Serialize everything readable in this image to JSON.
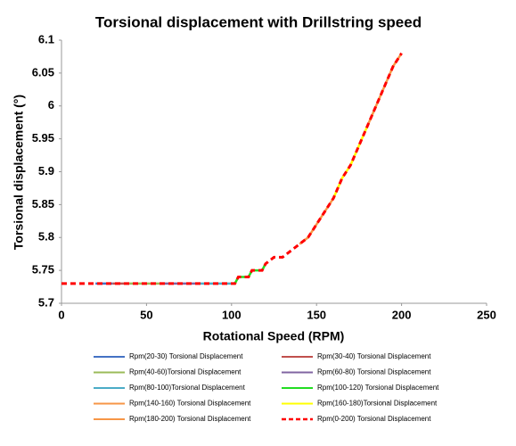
{
  "chart_data": {
    "type": "line",
    "title": "Torsional displacement with Drillstring speed",
    "x_label": "Rotational Speed (RPM)",
    "y_label": "Torsional displacement (°)",
    "xlim": [
      0,
      250
    ],
    "xticks": [
      0,
      50,
      100,
      150,
      200,
      250
    ],
    "ylim": [
      5.7,
      6.1
    ],
    "yticks": [
      5.7,
      5.75,
      5.8,
      5.85,
      5.9,
      5.95,
      6,
      6.05,
      6.1
    ],
    "grid": false,
    "series": [
      {
        "name": "Rpm(20-30) Torsional Displacement",
        "color": "#4472c4",
        "x": [
          20,
          30
        ],
        "values": [
          5.73,
          5.73
        ]
      },
      {
        "name": "Rpm(30-40) Torsional Displacement",
        "color": "#c0504d",
        "x": [
          30,
          40
        ],
        "values": [
          5.73,
          5.73
        ]
      },
      {
        "name": "Rpm(40-60)Torsional Displacement",
        "color": "#9bbb59",
        "x": [
          40,
          60
        ],
        "values": [
          5.73,
          5.73
        ]
      },
      {
        "name": "Rpm(60-80) Torsional Displacement",
        "color": "#8064a2",
        "x": [
          60,
          80
        ],
        "values": [
          5.73,
          5.73
        ]
      },
      {
        "name": "Rpm(80-100)Torsional Displacement",
        "color": "#4bacc6",
        "x": [
          80,
          100
        ],
        "values": [
          5.73,
          5.73
        ]
      },
      {
        "name": "Rpm(100-120) Torsional Displacement",
        "color": "#22dd22",
        "x": [
          100,
          102,
          104,
          110,
          112,
          118,
          120
        ],
        "values": [
          5.73,
          5.73,
          5.74,
          5.74,
          5.75,
          5.75,
          5.76
        ]
      },
      {
        "name": "Rpm(140-160) Torsional Displacement",
        "color": "#f79646",
        "x": [
          140,
          145,
          150,
          155,
          160
        ],
        "values": [
          5.79,
          5.8,
          5.82,
          5.84,
          5.86
        ]
      },
      {
        "name": "Rpm(160-180)Torsional Displacement",
        "color": "#ffff00",
        "x": [
          160,
          165,
          170,
          175,
          180
        ],
        "values": [
          5.86,
          5.89,
          5.91,
          5.94,
          5.97
        ]
      },
      {
        "name": "Rpm(180-200) Torsional Displacement",
        "color": "#f79646",
        "x": [
          180,
          185,
          190,
          195,
          200
        ],
        "values": [
          5.97,
          6.0,
          6.03,
          6.06,
          6.08
        ]
      },
      {
        "name": "Rpm(0-200) Torsional Displacement",
        "color": "#ff0000",
        "dashed": true,
        "x": [
          0,
          20,
          40,
          60,
          80,
          100,
          102,
          104,
          110,
          112,
          118,
          120,
          125,
          130,
          135,
          140,
          145,
          150,
          155,
          160,
          165,
          170,
          175,
          180,
          185,
          190,
          195,
          200
        ],
        "values": [
          5.73,
          5.73,
          5.73,
          5.73,
          5.73,
          5.73,
          5.73,
          5.74,
          5.74,
          5.75,
          5.75,
          5.76,
          5.77,
          5.77,
          5.78,
          5.79,
          5.8,
          5.82,
          5.84,
          5.86,
          5.89,
          5.91,
          5.94,
          5.97,
          6.0,
          6.03,
          6.06,
          6.08
        ]
      }
    ]
  }
}
